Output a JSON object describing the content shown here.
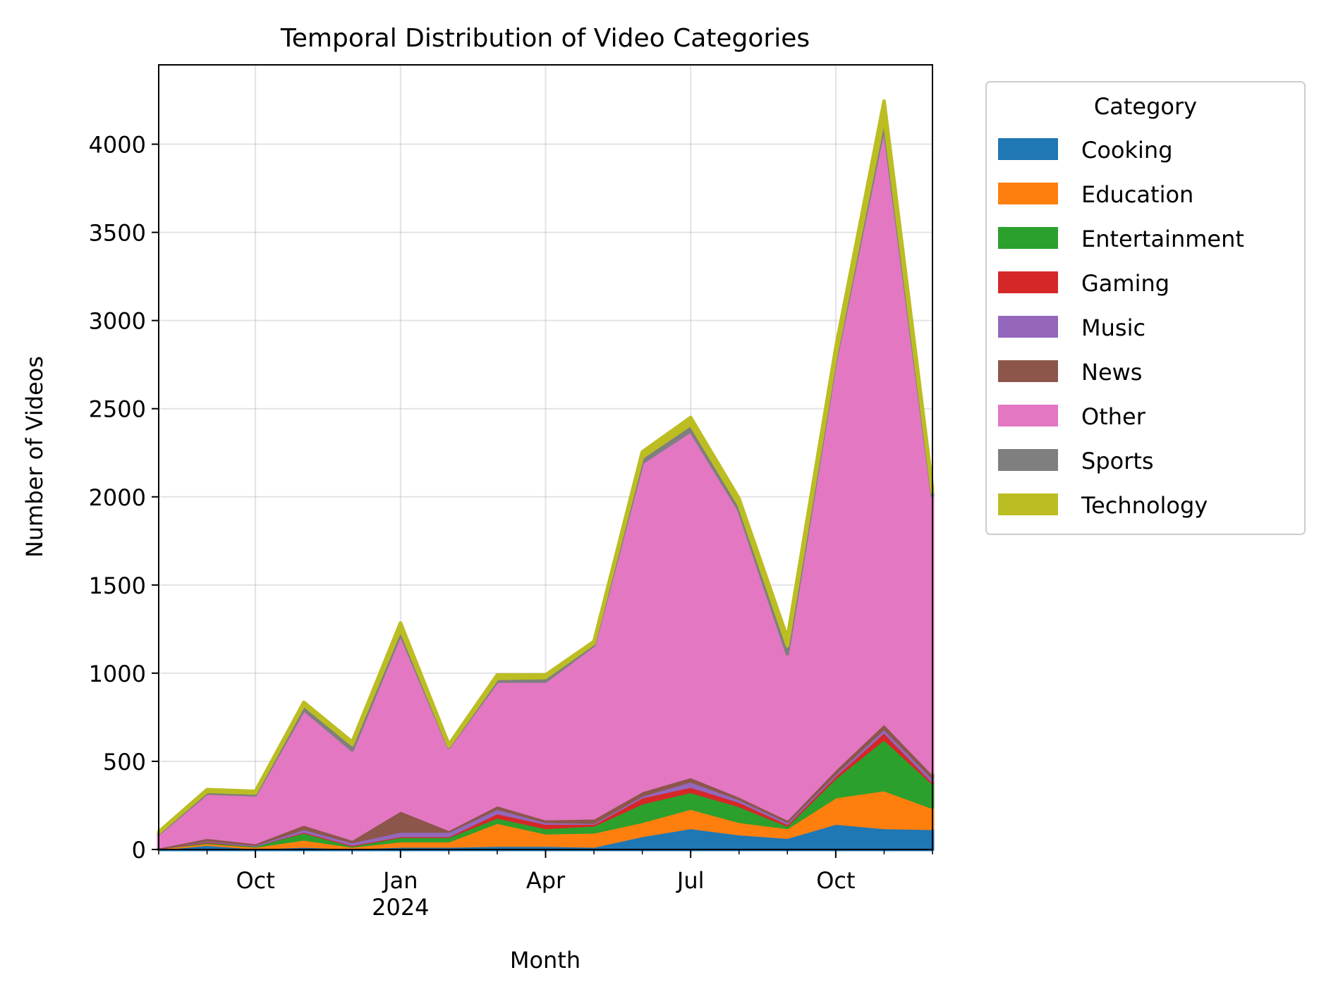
{
  "chart_data": {
    "type": "area",
    "title": "Temporal Distribution of Video Categories",
    "xlabel": "Month",
    "ylabel": "Number of Videos",
    "x": [
      "2023-08",
      "2023-09",
      "2023-10",
      "2023-11",
      "2023-12",
      "2024-01",
      "2024-02",
      "2024-03",
      "2024-04",
      "2024-05",
      "2024-06",
      "2024-07",
      "2024-08",
      "2024-09",
      "2024-10",
      "2024-11",
      "2024-12"
    ],
    "x_ticks": [
      {
        "x": "2023-10",
        "label": "Oct"
      },
      {
        "x": "2024-01",
        "label": "Jan\n2024"
      },
      {
        "x": "2024-04",
        "label": "Apr"
      },
      {
        "x": "2024-07",
        "label": "Jul"
      },
      {
        "x": "2024-10",
        "label": "Oct"
      }
    ],
    "ylim": [
      0,
      4450
    ],
    "y_ticks": [
      0,
      500,
      1000,
      1500,
      2000,
      2500,
      3000,
      3500,
      4000
    ],
    "grid": true,
    "stacked": true,
    "legend": {
      "title": "Category",
      "placement": "outside-upper-right"
    },
    "series": [
      {
        "name": "Cooking",
        "color": "#1f77b4",
        "values": [
          5,
          30,
          10,
          20,
          10,
          20,
          20,
          25,
          25,
          20,
          80,
          125,
          90,
          70,
          150,
          125,
          120
        ]
      },
      {
        "name": "Education",
        "color": "#ff7f0e",
        "values": [
          5,
          10,
          10,
          40,
          10,
          30,
          30,
          130,
          70,
          80,
          80,
          110,
          70,
          55,
          150,
          215,
          120
        ]
      },
      {
        "name": "Entertainment",
        "color": "#2ca02c",
        "values": [
          0,
          5,
          5,
          40,
          5,
          25,
          25,
          30,
          30,
          40,
          105,
          95,
          90,
          15,
          110,
          290,
          140
        ]
      },
      {
        "name": "Gaming",
        "color": "#d62728",
        "values": [
          0,
          5,
          0,
          5,
          5,
          5,
          5,
          25,
          25,
          10,
          35,
          30,
          25,
          10,
          15,
          40,
          10
        ]
      },
      {
        "name": "Music",
        "color": "#9467bd",
        "values": [
          0,
          5,
          5,
          15,
          15,
          25,
          25,
          25,
          10,
          5,
          10,
          30,
          15,
          10,
          10,
          20,
          20
        ]
      },
      {
        "name": "News",
        "color": "#8c564b",
        "values": [
          5,
          15,
          10,
          25,
          15,
          120,
          10,
          20,
          15,
          25,
          25,
          25,
          15,
          15,
          25,
          30,
          25
        ]
      },
      {
        "name": "Other",
        "color": "#e377c2",
        "values": [
          75,
          250,
          270,
          650,
          505,
          1000,
          465,
          700,
          780,
          980,
          1860,
          1960,
          1620,
          935,
          2320,
          3390,
          1570
        ]
      },
      {
        "name": "Sports",
        "color": "#7f7f7f",
        "values": [
          5,
          10,
          10,
          25,
          30,
          25,
          5,
          15,
          20,
          10,
          30,
          35,
          30,
          45,
          20,
          45,
          20
        ]
      },
      {
        "name": "Technology",
        "color": "#bcbd22",
        "values": [
          5,
          10,
          10,
          15,
          15,
          35,
          10,
          20,
          15,
          10,
          30,
          40,
          35,
          45,
          45,
          90,
          25
        ]
      }
    ]
  }
}
